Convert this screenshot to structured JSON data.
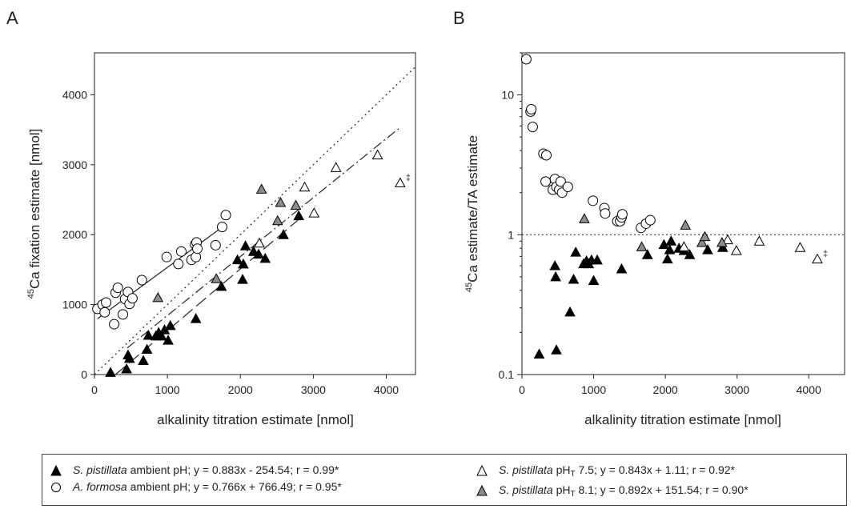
{
  "chart_data": [
    {
      "panel": "A",
      "type": "scatter",
      "xlabel": "alkalinity titration estimate [nmol]",
      "ylabel_sup": "45",
      "ylabel": "Ca fixation estimate [nmol]",
      "xlim": [
        0,
        4400
      ],
      "ylim": [
        0,
        4600
      ],
      "xticks": [
        "0",
        "1000",
        "2000",
        "3000",
        "4000"
      ],
      "yticks": [
        "0",
        "1000",
        "2000",
        "3000",
        "4000"
      ],
      "annotation": "‡",
      "series": [
        {
          "key": "sp_amb",
          "marker": "triangle-black",
          "points": [
            [
              220,
              30
            ],
            [
              440,
              80
            ],
            [
              460,
              280
            ],
            [
              480,
              230
            ],
            [
              670,
              200
            ],
            [
              720,
              360
            ],
            [
              740,
              560
            ],
            [
              840,
              550
            ],
            [
              880,
              600
            ],
            [
              920,
              550
            ],
            [
              960,
              640
            ],
            [
              1010,
              490
            ],
            [
              1040,
              700
            ],
            [
              1390,
              800
            ],
            [
              1740,
              1260
            ],
            [
              1960,
              1640
            ],
            [
              2030,
              1360
            ],
            [
              2040,
              1580
            ],
            [
              2070,
              1840
            ],
            [
              2180,
              1760
            ],
            [
              2250,
              1720
            ],
            [
              2340,
              1660
            ],
            [
              2590,
              2000
            ],
            [
              2800,
              2270
            ]
          ]
        },
        {
          "key": "af_amb",
          "marker": "circle-white",
          "points": [
            [
              40,
              940
            ],
            [
              110,
              1000
            ],
            [
              140,
              890
            ],
            [
              160,
              1030
            ],
            [
              270,
              720
            ],
            [
              290,
              1170
            ],
            [
              320,
              1240
            ],
            [
              390,
              860
            ],
            [
              420,
              1080
            ],
            [
              460,
              1180
            ],
            [
              480,
              1010
            ],
            [
              520,
              1090
            ],
            [
              650,
              1350
            ],
            [
              990,
              1680
            ],
            [
              1150,
              1580
            ],
            [
              1190,
              1760
            ],
            [
              1330,
              1640
            ],
            [
              1380,
              1860
            ],
            [
              1390,
              1680
            ],
            [
              1400,
              1890
            ],
            [
              1410,
              1800
            ],
            [
              1660,
              1850
            ],
            [
              1750,
              2110
            ],
            [
              1800,
              2280
            ]
          ]
        },
        {
          "key": "sp_75",
          "marker": "triangle-white",
          "points": [
            [
              2260,
              1880
            ],
            [
              2880,
              2680
            ],
            [
              3010,
              2310
            ],
            [
              3310,
              2960
            ],
            [
              3880,
              3140
            ],
            [
              4190,
              2740
            ]
          ]
        },
        {
          "key": "sp_81",
          "marker": "triangle-gray",
          "points": [
            [
              870,
              1100
            ],
            [
              1670,
              1370
            ],
            [
              2290,
              2650
            ],
            [
              2510,
              2200
            ],
            [
              2550,
              2460
            ],
            [
              2760,
              2420
            ]
          ]
        }
      ],
      "fits": [
        {
          "key": "sp_amb",
          "style": "long-dash",
          "x": [
            290,
            2850
          ],
          "slope": 0.883,
          "intercept": -254.54
        },
        {
          "key": "af_amb",
          "style": "solid",
          "x": [
            40,
            1780
          ],
          "slope": 0.766,
          "intercept": 766.49
        },
        {
          "key": "sp_75",
          "style": "dash-dot",
          "x": [
            450,
            4190
          ],
          "slope": 0.843,
          "intercept": 1.11
        },
        {
          "key": "identity",
          "style": "dotted",
          "x": [
            0,
            4400
          ],
          "slope": 1,
          "intercept": 0
        }
      ]
    },
    {
      "panel": "B",
      "type": "scatter",
      "xlabel": "alkalinity titration estimate [nmol]",
      "ylabel_sup": "45",
      "ylabel": "Ca estimate/TA estimate",
      "yscale": "log",
      "xlim": [
        0,
        4500
      ],
      "ylim": [
        0.1,
        20
      ],
      "xticks": [
        "0",
        "1000",
        "2000",
        "3000",
        "4000"
      ],
      "yticks": [
        "0.1",
        "1",
        "10"
      ],
      "reference_y": 1,
      "annotation": "‡",
      "series": [
        {
          "key": "sp_amb",
          "marker": "triangle-black",
          "points": [
            [
              240,
              0.14
            ],
            [
              460,
              0.6
            ],
            [
              470,
              0.5
            ],
            [
              480,
              0.15
            ],
            [
              670,
              0.28
            ],
            [
              720,
              0.48
            ],
            [
              750,
              0.75
            ],
            [
              860,
              0.62
            ],
            [
              900,
              0.65
            ],
            [
              930,
              0.62
            ],
            [
              970,
              0.66
            ],
            [
              1000,
              0.47
            ],
            [
              1050,
              0.66
            ],
            [
              1390,
              0.57
            ],
            [
              1750,
              0.72
            ],
            [
              1980,
              0.85
            ],
            [
              2030,
              0.67
            ],
            [
              2060,
              0.78
            ],
            [
              2080,
              0.9
            ],
            [
              2190,
              0.8
            ],
            [
              2260,
              0.77
            ],
            [
              2340,
              0.72
            ],
            [
              2590,
              0.78
            ],
            [
              2800,
              0.81
            ]
          ]
        },
        {
          "key": "af_amb",
          "marker": "circle-white",
          "points": [
            [
              60,
              18
            ],
            [
              120,
              7.6
            ],
            [
              130,
              7.9
            ],
            [
              150,
              5.9
            ],
            [
              300,
              3.8
            ],
            [
              340,
              3.7
            ],
            [
              330,
              2.4
            ],
            [
              430,
              2.1
            ],
            [
              460,
              2.5
            ],
            [
              480,
              2.2
            ],
            [
              520,
              2.1
            ],
            [
              540,
              2.4
            ],
            [
              560,
              2
            ],
            [
              640,
              2.2
            ],
            [
              990,
              1.75
            ],
            [
              1150,
              1.55
            ],
            [
              1160,
              1.42
            ],
            [
              1330,
              1.25
            ],
            [
              1370,
              1.25
            ],
            [
              1390,
              1.33
            ],
            [
              1400,
              1.4
            ],
            [
              1660,
              1.12
            ],
            [
              1730,
              1.2
            ],
            [
              1790,
              1.27
            ]
          ]
        },
        {
          "key": "sp_75",
          "marker": "triangle-white",
          "points": [
            [
              2260,
              0.82
            ],
            [
              2870,
              0.92
            ],
            [
              2990,
              0.77
            ],
            [
              3310,
              0.9
            ],
            [
              3880,
              0.81
            ],
            [
              4120,
              0.67
            ]
          ]
        },
        {
          "key": "sp_81",
          "marker": "triangle-gray",
          "points": [
            [
              870,
              1.3
            ],
            [
              1670,
              0.82
            ],
            [
              2280,
              1.17
            ],
            [
              2510,
              0.88
            ],
            [
              2550,
              0.97
            ],
            [
              2790,
              0.88
            ]
          ]
        }
      ]
    }
  ],
  "panels": {
    "a_label": "A",
    "b_label": "B"
  },
  "legend": [
    {
      "key": "sp_amb",
      "marker": "triangle-black",
      "species": "S. pistillata",
      "cond": " ambient pH",
      "sub": "",
      "fit": "; y = 0.883x - 254.54; r = 0.99*"
    },
    {
      "key": "af_amb",
      "marker": "circle-white",
      "species": "A. formosa",
      "cond": " ambient pH",
      "sub": "",
      "fit": "; y = 0.766x + 766.49; r = 0.95*"
    },
    {
      "key": "sp_75",
      "marker": "triangle-white",
      "species": "S. pistillata",
      "cond": " pH",
      "sub": "T",
      "fit": " 7.5; y = 0.843x + 1.11; r = 0.92*"
    },
    {
      "key": "sp_81",
      "marker": "triangle-gray",
      "species": "S. pistillata",
      "cond": " pH",
      "sub": "T",
      "fit": " 8.1; y = 0.892x + 151.54; r = 0.90*"
    }
  ],
  "colors": {
    "black_marker": "#000000",
    "gray_marker": "#8c8c8c",
    "white_marker": "#ffffff",
    "axis": "#222222"
  }
}
